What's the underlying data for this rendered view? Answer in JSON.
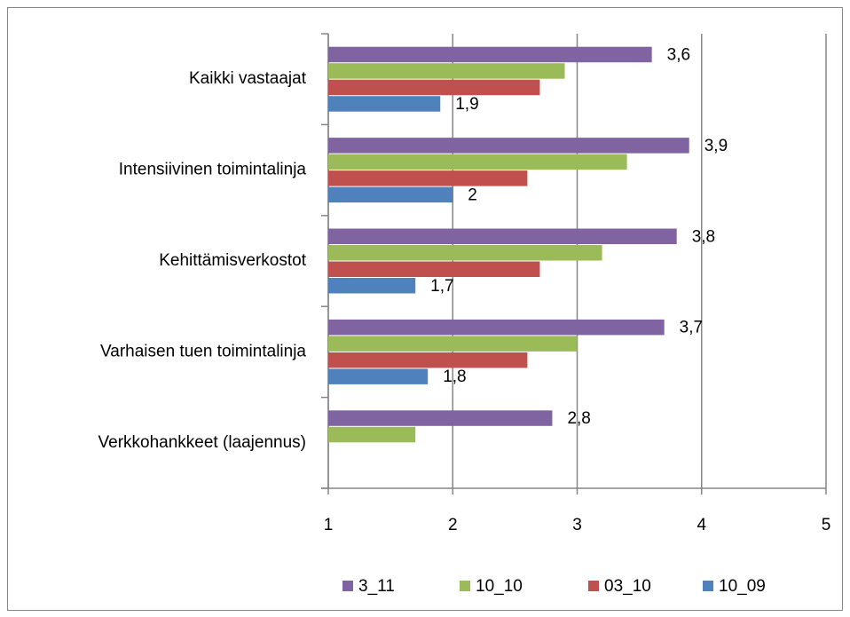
{
  "chart_data": {
    "type": "hbar",
    "categories": [
      "Kaikki vastaajat",
      "Intensiivinen toimintalinja",
      "Kehittämisverkostot",
      "Varhaisen tuen toimintalinja",
      "Verkkohankkeet (laajennus)"
    ],
    "series": [
      {
        "name": "3_11",
        "color": "#8064a2",
        "values": [
          3.6,
          3.9,
          3.8,
          3.7,
          2.8
        ],
        "value_labels": [
          "3,6",
          "3,9",
          "3,8",
          "3,7",
          "2,8"
        ]
      },
      {
        "name": "10_10",
        "color": "#9bbb59",
        "values": [
          2.9,
          3.4,
          3.2,
          3.0,
          1.7
        ]
      },
      {
        "name": "03_10",
        "color": "#c0504d",
        "values": [
          2.7,
          2.6,
          2.7,
          2.6,
          null
        ]
      },
      {
        "name": "10_09",
        "color": "#4f81bd",
        "values": [
          1.9,
          2,
          1.7,
          1.8,
          null
        ],
        "value_labels": [
          "1,9",
          "2",
          "1,7",
          "1,8",
          null
        ]
      }
    ],
    "xlim": [
      1,
      5
    ],
    "xticks": [
      1,
      2,
      3,
      4,
      5
    ],
    "grid": true,
    "legend": "bottom"
  }
}
